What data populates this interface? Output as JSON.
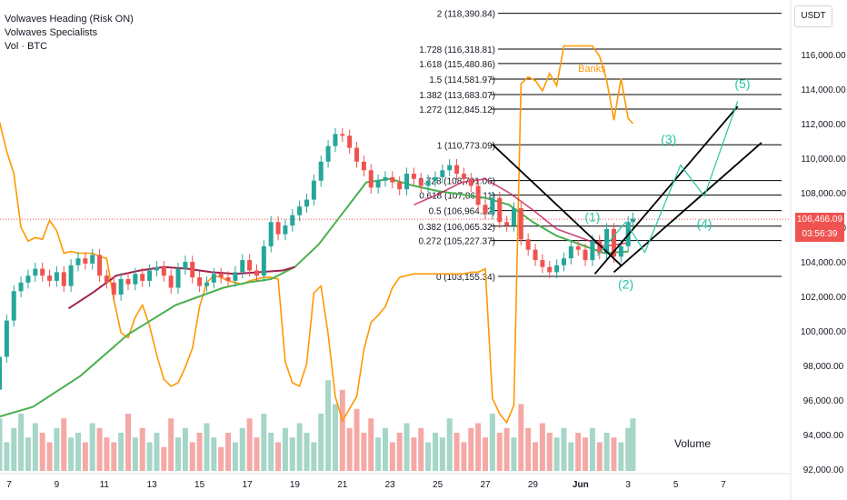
{
  "legend": {
    "line1": "Volwaves Heading (Risk ON)",
    "line2": "Volwaves Specialists",
    "line3": "Vol · BTC"
  },
  "currency": "USDT",
  "colors": {
    "up": "#26a69a",
    "down": "#ef5350",
    "orange": "#ff9800",
    "green_ma": "#4caf50",
    "maroon_ma": "#a1224e",
    "wave": "#26c6a6",
    "vol_up": "#a5d6c8",
    "vol_down": "#f4a9a6",
    "line": "#000000"
  },
  "chart_data": {
    "type": "line",
    "title": "",
    "xlabel": "",
    "ylabel": "",
    "ylim": [
      91900,
      119200
    ],
    "x_ticks": [
      "7",
      "9",
      "11",
      "13",
      "15",
      "17",
      "19",
      "21",
      "23",
      "25",
      "27",
      "29",
      "Jun",
      "3",
      "5",
      "7"
    ],
    "y_ticks": [
      92000,
      94000,
      96000,
      98000,
      100000,
      102000,
      104000,
      106000,
      108000,
      110000,
      112000,
      114000,
      116000
    ],
    "y_tick_labels": [
      "92,000.00",
      "94,000.00",
      "96,000.00",
      "98,000.00",
      "100,000.00",
      "102,000.00",
      "104,000.00",
      "106,000.00",
      "108,000.00",
      "110,000.00",
      "112,000.00",
      "114,000.00",
      "116,000.00"
    ],
    "current_price": 106466.09,
    "current_price_label": "106,466.09",
    "countdown": "03:56:39",
    "fib_levels": [
      {
        "label": "2 (118,390.84)",
        "price": 118390.84
      },
      {
        "label": "1.728 (116,318.81)",
        "price": 116318.81
      },
      {
        "label": "1.618 (115,480.86)",
        "price": 115480.86
      },
      {
        "label": "1.5 (114,581.97)",
        "price": 114581.97
      },
      {
        "label": "1.382 (113,683.07)",
        "price": 113683.07
      },
      {
        "label": "1.272 (112,845.12)",
        "price": 112845.12
      },
      {
        "label": "1 (110,773.09)",
        "price": 110773.09
      },
      {
        "label": "0.728 (108,701.06)",
        "price": 108701.06
      },
      {
        "label": "0.618 (107,863.11)",
        "price": 107863.11
      },
      {
        "label": "0.5 (106,964.22)",
        "price": 106964.22
      },
      {
        "label": "0.382 (106,065.32)",
        "price": 106065.32
      },
      {
        "label": "0.272 (105,227.37)",
        "price": 105227.37
      },
      {
        "label": "0 (103,155.34)",
        "price": 103155.34
      }
    ],
    "wave_labels": [
      {
        "label": "(1)",
        "day": 31.5,
        "price": 106350
      },
      {
        "label": "(2)",
        "day": 32.9,
        "price": 102450
      },
      {
        "label": "(3)",
        "day": 34.7,
        "price": 110850
      },
      {
        "label": "(4)",
        "day": 36.2,
        "price": 105950
      },
      {
        "label": "(5)",
        "day": 37.8,
        "price": 114050
      }
    ],
    "wave_path": [
      [
        31.7,
        104350
      ],
      [
        32.9,
        106300
      ],
      [
        33.7,
        104550
      ],
      [
        35.2,
        109600
      ],
      [
        36.2,
        107800
      ],
      [
        37.6,
        113300
      ]
    ],
    "banks_label": {
      "label": "Banks",
      "day": 30.9,
      "price": 115000
    },
    "volume_label": "Volume",
    "orange_series": {
      "day": [
        6.0,
        6.3,
        6.6,
        6.9,
        7.2,
        7.5,
        7.8,
        8.1,
        8.4,
        8.7,
        9.0,
        9.3,
        9.6,
        9.9,
        10.2,
        10.5,
        10.8,
        11.1,
        11.4,
        11.7,
        12.0,
        12.3,
        12.6,
        12.9,
        13.2,
        13.5,
        13.8,
        14.1,
        14.4,
        14.7,
        15.0,
        15.3,
        15.6,
        15.9,
        16.2,
        16.5,
        16.8,
        17.1,
        17.4,
        17.7,
        18.0,
        18.3,
        18.6,
        18.9,
        19.2,
        19.5,
        19.8,
        20.1,
        20.4,
        20.7,
        21.0,
        21.3,
        21.6,
        21.9,
        22.2,
        22.5,
        22.8,
        23.1,
        23.4,
        23.7,
        24.0,
        24.3,
        24.6,
        24.9,
        25.2,
        25.5,
        25.8,
        26.1,
        26.4,
        26.7,
        27.0,
        27.3,
        27.6,
        27.9,
        28.2,
        28.5,
        28.8,
        29.1,
        29.4,
        29.7,
        30.0,
        30.3,
        30.6,
        30.9,
        31.2,
        31.5,
        31.8,
        32.1,
        32.4,
        32.7,
        33.0,
        33.2
      ],
      "price": [
        109800,
        110500,
        112100,
        110400,
        109100,
        106000,
        105200,
        105400,
        105300,
        106400,
        105800,
        104500,
        104600,
        104500,
        104500,
        104500,
        104300,
        104200,
        101800,
        99900,
        99600,
        100800,
        101500,
        100300,
        98600,
        97200,
        96800,
        97000,
        97900,
        99000,
        101400,
        102800,
        103200,
        103100,
        102900,
        102800,
        102700,
        102900,
        103000,
        103100,
        103100,
        103000,
        98200,
        97000,
        96800,
        98100,
        102200,
        102600,
        99800,
        96200,
        94800,
        95500,
        96200,
        98900,
        100500,
        100900,
        101400,
        102500,
        103100,
        103200,
        103300,
        103300,
        103300,
        103300,
        103300,
        103300,
        103300,
        103300,
        103400,
        103400,
        103600,
        96100,
        95200,
        94700,
        95700,
        114300,
        114700,
        114500,
        113900,
        114900,
        114200,
        116500,
        116500,
        116500,
        116500,
        116500,
        115900,
        114500,
        112200,
        114600,
        112300,
        112000
      ]
    },
    "candles": {
      "day": [
        6.0,
        6.3,
        6.6,
        6.9,
        7.2,
        7.5,
        7.8,
        8.1,
        8.4,
        8.7,
        9.0,
        9.3,
        9.6,
        9.9,
        10.2,
        10.5,
        10.8,
        11.1,
        11.4,
        11.7,
        12.0,
        12.3,
        12.6,
        12.9,
        13.2,
        13.5,
        13.8,
        14.1,
        14.4,
        14.7,
        15.0,
        15.3,
        15.6,
        15.9,
        16.2,
        16.5,
        16.8,
        17.1,
        17.4,
        17.7,
        18.0,
        18.3,
        18.6,
        18.9,
        19.2,
        19.5,
        19.8,
        20.1,
        20.4,
        20.7,
        21.0,
        21.3,
        21.6,
        21.9,
        22.2,
        22.5,
        22.8,
        23.1,
        23.4,
        23.7,
        24.0,
        24.3,
        24.6,
        24.9,
        25.2,
        25.5,
        25.8,
        26.1,
        26.4,
        26.7,
        27.0,
        27.3,
        27.6,
        27.9,
        28.2,
        28.5,
        28.8,
        29.1,
        29.4,
        29.7,
        30.0,
        30.3,
        30.6,
        30.9,
        31.2,
        31.5,
        31.8,
        32.1,
        32.4,
        32.7,
        33.0,
        33.2
      ],
      "close": [
        97200,
        96600,
        98500,
        100600,
        102300,
        102800,
        103200,
        103600,
        103200,
        102900,
        103400,
        102600,
        103800,
        104200,
        103900,
        104400,
        103200,
        102800,
        102100,
        103000,
        102700,
        103300,
        102900,
        103500,
        103700,
        103200,
        102500,
        103600,
        104000,
        103100,
        102600,
        102800,
        103300,
        103100,
        102900,
        103400,
        104100,
        103500,
        103200,
        104900,
        106300,
        105600,
        106100,
        106700,
        107200,
        107600,
        108700,
        109800,
        110700,
        111400,
        111300,
        110600,
        109800,
        109300,
        108300,
        108700,
        108900,
        108600,
        108200,
        109100,
        108800,
        108400,
        108700,
        108900,
        109300,
        109600,
        109100,
        108800,
        108400,
        107300,
        106800,
        107700,
        106300,
        106100,
        107100,
        105300,
        104700,
        104100,
        103700,
        103400,
        103800,
        104200,
        104900,
        104700,
        104100,
        105200,
        104500,
        105900,
        104300,
        104900,
        106300,
        106500
      ]
    },
    "volume": {
      "day": [
        6.0,
        6.3,
        6.6,
        6.9,
        7.2,
        7.5,
        7.8,
        8.1,
        8.4,
        8.7,
        9.0,
        9.3,
        9.6,
        9.9,
        10.2,
        10.5,
        10.8,
        11.1,
        11.4,
        11.7,
        12.0,
        12.3,
        12.6,
        12.9,
        13.2,
        13.5,
        13.8,
        14.1,
        14.4,
        14.7,
        15.0,
        15.3,
        15.6,
        15.9,
        16.2,
        16.5,
        16.8,
        17.1,
        17.4,
        17.7,
        18.0,
        18.3,
        18.6,
        18.9,
        19.2,
        19.5,
        19.8,
        20.1,
        20.4,
        20.7,
        21.0,
        21.3,
        21.6,
        21.9,
        22.2,
        22.5,
        22.8,
        23.1,
        23.4,
        23.7,
        24.0,
        24.3,
        24.6,
        24.9,
        25.2,
        25.5,
        25.8,
        26.1,
        26.4,
        26.7,
        27.0,
        27.3,
        27.6,
        27.9,
        28.2,
        28.5,
        28.8,
        29.1,
        29.4,
        29.7,
        30.0,
        30.3,
        30.6,
        30.9,
        31.2,
        31.5,
        31.8,
        32.1,
        32.4,
        32.7,
        33.0,
        33.2
      ],
      "value": [
        40,
        25,
        55,
        30,
        45,
        60,
        35,
        50,
        40,
        30,
        45,
        55,
        35,
        40,
        30,
        50,
        45,
        35,
        30,
        40,
        60,
        35,
        45,
        30,
        40,
        25,
        55,
        35,
        45,
        30,
        40,
        50,
        35,
        25,
        40,
        30,
        45,
        55,
        35,
        60,
        40,
        30,
        45,
        35,
        50,
        40,
        30,
        60,
        95,
        70,
        85,
        45,
        65,
        40,
        55,
        35,
        45,
        30,
        40,
        50,
        35,
        45,
        30,
        40,
        35,
        55,
        40,
        30,
        45,
        50,
        35,
        60,
        40,
        45,
        35,
        70,
        45,
        30,
        50,
        40,
        35,
        45,
        30,
        40,
        35,
        45,
        30,
        40,
        35,
        30,
        45,
        55
      ]
    },
    "green_ma": {
      "day": [
        6,
        8,
        10,
        12,
        14,
        16,
        17,
        18,
        19,
        20,
        21,
        22,
        23,
        24,
        25,
        26,
        27,
        28,
        29,
        30,
        31,
        32,
        33
      ],
      "price": [
        94800,
        95600,
        97400,
        99800,
        101500,
        102500,
        102800,
        103000,
        103700,
        105000,
        106800,
        108600,
        108800,
        108400,
        108100,
        107900,
        107700,
        107300,
        106300,
        105500,
        105000,
        104500,
        104600
      ]
    },
    "maroon_ma": {
      "day": [
        9.5,
        10.5,
        11.5,
        12.5,
        13.5,
        14.5,
        15.5,
        16.5,
        17.5,
        18.5,
        19.0
      ],
      "price": [
        101300,
        102200,
        103200,
        103500,
        103700,
        103600,
        103400,
        103300,
        103400,
        103500,
        103700
      ]
    },
    "maroon_ma2": {
      "day": [
        24,
        25,
        26,
        27,
        28,
        29,
        30,
        31,
        32,
        33
      ],
      "price": [
        107300,
        107900,
        108600,
        108800,
        108000,
        107000,
        105900,
        105400,
        104900,
        105100
      ]
    }
  }
}
